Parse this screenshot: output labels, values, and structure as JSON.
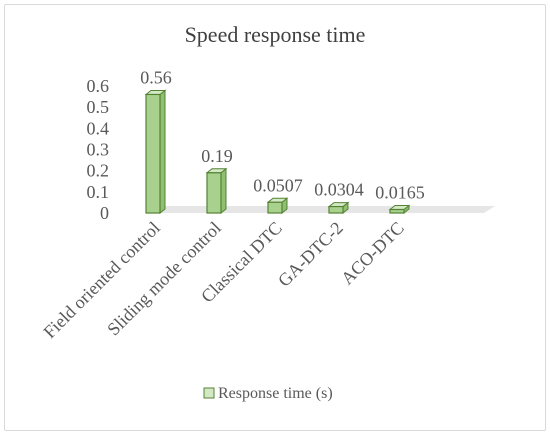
{
  "chart_data": {
    "type": "bar",
    "style": "3d-column",
    "title": "Speed response time",
    "categories": [
      "Field oriented control",
      "Sliding mode control",
      "Classical DTC",
      "GA-DTC-2",
      "ACO-DTC"
    ],
    "series": [
      {
        "name": "Response time (s)",
        "values": [
          0.56,
          0.19,
          0.0507,
          0.0304,
          0.0165
        ],
        "value_labels": [
          "0.56",
          "0.19",
          "0.0507",
          "0.0304",
          "0.0165"
        ]
      }
    ],
    "y_ticks": [
      "0",
      "0.1",
      "0.2",
      "0.3",
      "0.4",
      "0.5",
      "0.6"
    ],
    "ylim": [
      0,
      0.6
    ],
    "legend_position": "bottom",
    "grid": false,
    "colors": {
      "bar_front": "#a9d18e",
      "bar_side": "#8fbf70",
      "bar_top": "#d3e9c3",
      "bar_edge": "#548235",
      "floor": "#e7e6e6"
    }
  }
}
